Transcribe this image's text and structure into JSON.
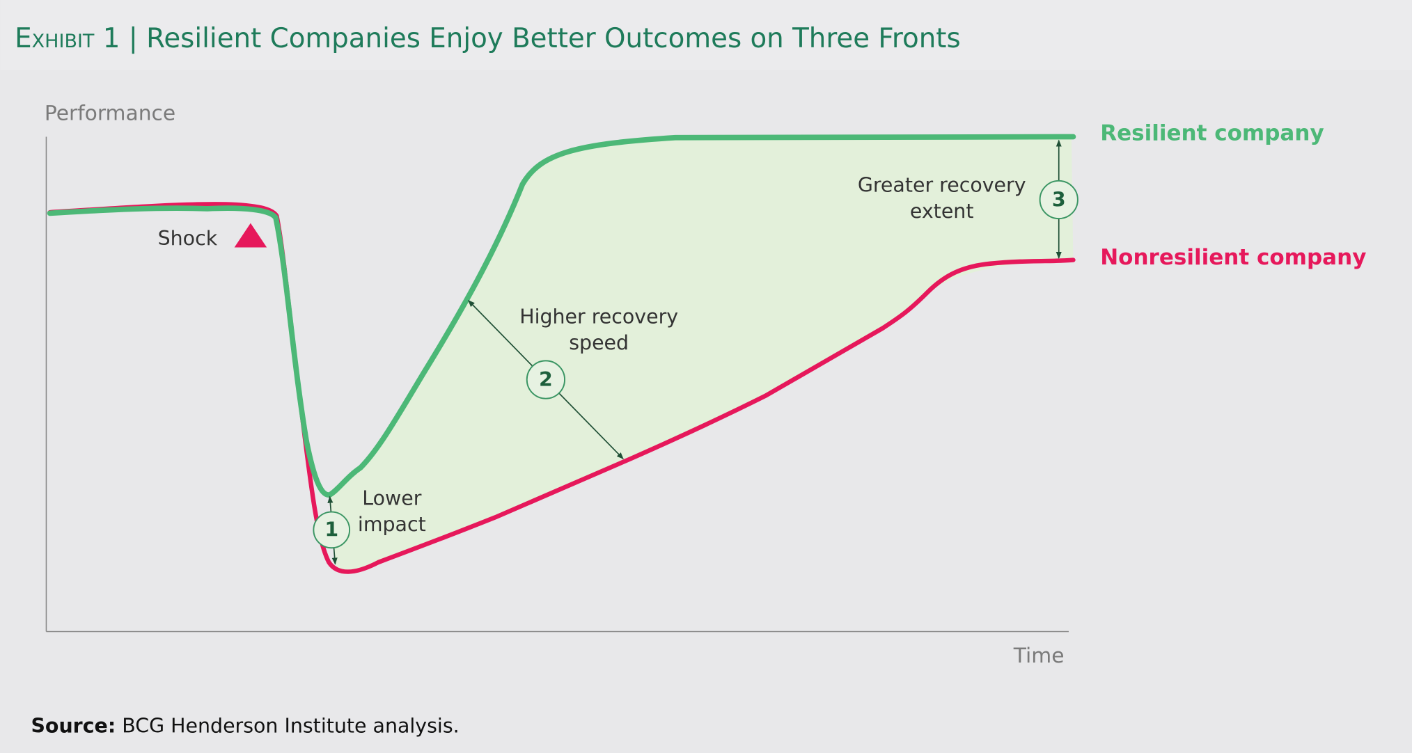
{
  "header": {
    "exhibit": "Exhibit 1",
    "title": "Resilient Companies Enjoy Better Outcomes on Three Fronts"
  },
  "axes": {
    "y_label": "Performance",
    "x_label": "Time"
  },
  "lines": [
    {
      "label": "Resilient company"
    },
    {
      "label": "Nonresilient company"
    }
  ],
  "annotations": [
    {
      "label": [
        "Shock"
      ]
    },
    {
      "number": "1",
      "label": [
        "Lower",
        "impact"
      ]
    },
    {
      "number": "2",
      "label": [
        "Higher recovery",
        "speed"
      ]
    },
    {
      "number": "3",
      "label": [
        "Greater recovery",
        "extent"
      ]
    }
  ],
  "source": {
    "label": "Source:",
    "text": "BCG Henderson Institute analysis."
  }
}
